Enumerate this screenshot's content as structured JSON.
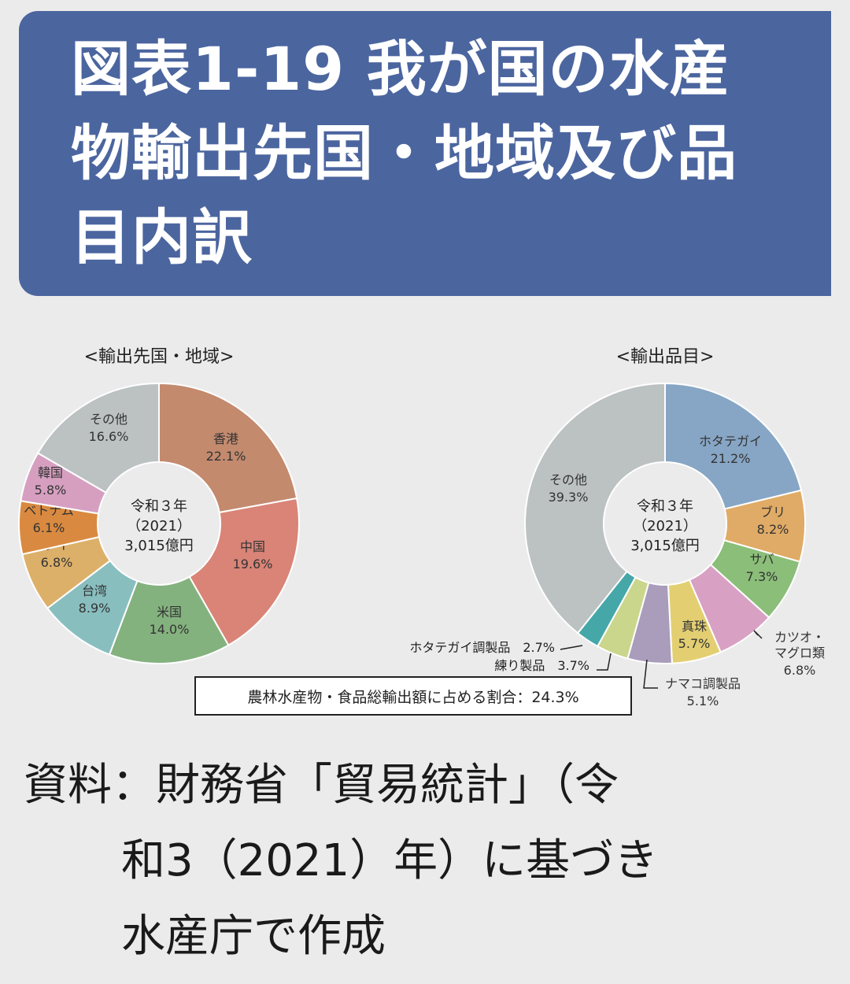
{
  "title": "図表1-19 我が国の水産物輸出先国・地域及び品目内訳",
  "title_lines": [
    "図表1-19 我が国の水産",
    "物輸出先国・地域及び品",
    "目内訳"
  ],
  "source": {
    "line1": "資料：財務省「貿易統計」（令",
    "line2": "和3（2021）年）に基づき",
    "line3": "水産庁で作成"
  },
  "ratio_box": "農林水産物・食品総輸出額に占める割合：24.3%",
  "chart_data": [
    {
      "type": "pie",
      "title": "<輸出先国・地域>",
      "center_lines": [
        "令和３年",
        "（2021）",
        "3,015億円"
      ],
      "slices": [
        {
          "label": "香港",
          "value": 22.1,
          "value_label": "22.1%",
          "color": "#c38a6e"
        },
        {
          "label": "中国",
          "value": 19.6,
          "value_label": "19.6%",
          "color": "#d98477"
        },
        {
          "label": "米国",
          "value": 14.0,
          "value_label": "14.0%",
          "color": "#84b27f"
        },
        {
          "label": "台湾",
          "value": 8.9,
          "value_label": "8.9%",
          "color": "#89bebf"
        },
        {
          "label": "タイ",
          "value": 6.8,
          "value_label": "6.8%",
          "color": "#ddb069"
        },
        {
          "label": "ベトナム",
          "value": 6.1,
          "value_label": "6.1%",
          "color": "#d98a40"
        },
        {
          "label": "韓国",
          "value": 5.8,
          "value_label": "5.8%",
          "color": "#d69fc0"
        },
        {
          "label": "その他",
          "value": 16.6,
          "value_label": "16.6%",
          "color": "#bcc1c2"
        }
      ]
    },
    {
      "type": "pie",
      "title": "<輸出品目>",
      "center_lines": [
        "令和３年",
        "（2021）",
        "3,015億円"
      ],
      "slices": [
        {
          "label": "ホタテガイ",
          "value": 21.2,
          "value_label": "21.2%",
          "color": "#87a6c5"
        },
        {
          "label": "ブリ",
          "value": 8.2,
          "value_label": "8.2%",
          "color": "#e0ab66"
        },
        {
          "label": "サバ",
          "value": 7.3,
          "value_label": "7.3%",
          "color": "#8bbe79"
        },
        {
          "label": "カツオ・マグロ類",
          "value": 6.8,
          "value_label": "6.8%",
          "color": "#d8a1c3"
        },
        {
          "label": "真珠",
          "value": 5.7,
          "value_label": "5.7%",
          "color": "#e3cf72"
        },
        {
          "label": "ナマコ調製品",
          "value": 5.1,
          "value_label": "5.1%",
          "color": "#a99dbb"
        },
        {
          "label": "練り製品",
          "value": 3.7,
          "value_label": "3.7%",
          "color": "#cad68c"
        },
        {
          "label": "ホタテガイ調製品",
          "value": 2.7,
          "value_label": "2.7%",
          "color": "#45a7a8"
        },
        {
          "label": "その他",
          "value": 39.3,
          "value_label": "39.3%",
          "color": "#bcc1c2"
        }
      ]
    }
  ]
}
